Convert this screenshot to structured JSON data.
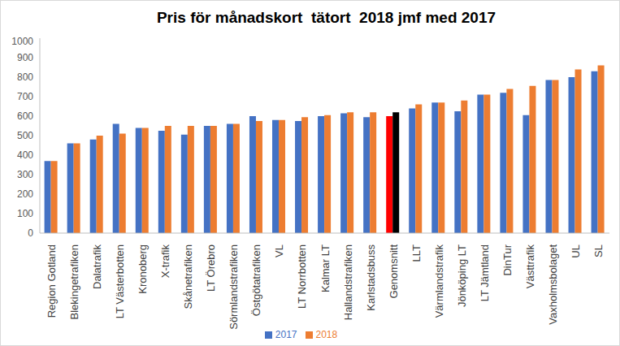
{
  "chart_data": {
    "type": "bar",
    "title": "Pris för månadskort  tätort  2018 jmf med 2017",
    "categories": [
      "Region Gotland",
      "Blekingetrafiken",
      "Dalatrafik",
      "LT Västerbotten",
      "Kronoberg",
      "X-trafik",
      "Skånetrafiken",
      "LT Örebro",
      "Sörmlandstrafiken",
      "Östgötatrafiken",
      "VL",
      "LT Norrbotten",
      "Kalmar LT",
      "Hallandstrafiken",
      "Karlstadsbuss",
      "Genomsnitt",
      "LLT",
      "Värmlandstrafik",
      "Jönköping LT",
      "LT Jämtland",
      "DinTur",
      "Västtrafik",
      "Vaxholmsbolaget",
      "UL",
      "SL"
    ],
    "series": [
      {
        "name": "2017",
        "color": "#4472c4",
        "colors": [
          "#4472c4",
          "#4472c4",
          "#4472c4",
          "#4472c4",
          "#4472c4",
          "#4472c4",
          "#4472c4",
          "#4472c4",
          "#4472c4",
          "#4472c4",
          "#4472c4",
          "#4472c4",
          "#4472c4",
          "#4472c4",
          "#4472c4",
          "#ff0000",
          "#4472c4",
          "#4472c4",
          "#4472c4",
          "#4472c4",
          "#4472c4",
          "#4472c4",
          "#4472c4",
          "#4472c4",
          "#4472c4"
        ],
        "values": [
          370,
          460,
          480,
          560,
          540,
          525,
          505,
          550,
          560,
          600,
          580,
          575,
          600,
          615,
          595,
          600,
          640,
          670,
          625,
          710,
          720,
          605,
          785,
          800,
          830
        ]
      },
      {
        "name": "2018",
        "color": "#ed7d31",
        "colors": [
          "#ed7d31",
          "#ed7d31",
          "#ed7d31",
          "#ed7d31",
          "#ed7d31",
          "#ed7d31",
          "#ed7d31",
          "#ed7d31",
          "#ed7d31",
          "#ed7d31",
          "#ed7d31",
          "#ed7d31",
          "#ed7d31",
          "#ed7d31",
          "#ed7d31",
          "#000000",
          "#ed7d31",
          "#ed7d31",
          "#ed7d31",
          "#ed7d31",
          "#ed7d31",
          "#ed7d31",
          "#ed7d31",
          "#ed7d31",
          "#ed7d31"
        ],
        "values": [
          370,
          460,
          500,
          510,
          540,
          550,
          550,
          550,
          560,
          575,
          580,
          595,
          605,
          620,
          620,
          620,
          660,
          670,
          680,
          710,
          740,
          755,
          785,
          840,
          860
        ]
      }
    ],
    "ylim": [
      0,
      1000
    ],
    "yticks": [
      0,
      100,
      200,
      300,
      400,
      500,
      600,
      700,
      800,
      900,
      1000
    ],
    "grid": false,
    "legend": "bottom"
  }
}
